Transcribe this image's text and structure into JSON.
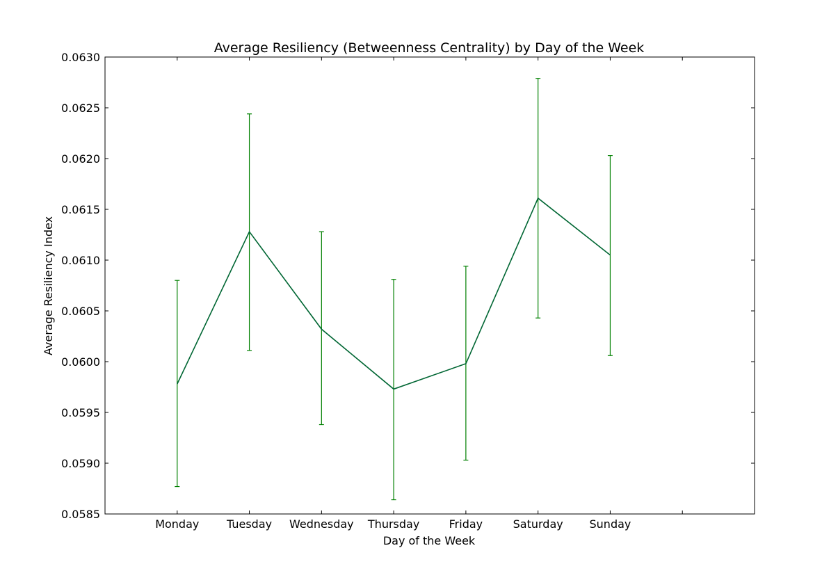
{
  "chart_data": {
    "type": "line",
    "title": "Average Resiliency (Betweenness Centrality) by Day of the Week",
    "xlabel": "Day of the Week",
    "ylabel": "Average Resiliency Index",
    "categories": [
      "Monday",
      "Tuesday",
      "Wednesday",
      "Thursday",
      "Friday",
      "Saturday",
      "Sunday"
    ],
    "xlim": [
      -1,
      8
    ],
    "ylim": [
      0.0585,
      0.063
    ],
    "y_ticks": [
      "0.0585",
      "0.0590",
      "0.0595",
      "0.0600",
      "0.0605",
      "0.0610",
      "0.0615",
      "0.0620",
      "0.0625",
      "0.0630"
    ],
    "grid": false,
    "series": [
      {
        "values": [
          0.05978,
          0.06128,
          0.06032,
          0.05973,
          0.05998,
          0.06161,
          0.06105
        ],
        "error_lower": [
          0.05877,
          0.06011,
          0.05938,
          0.05864,
          0.05903,
          0.06043,
          0.06006
        ],
        "error_upper": [
          0.0608,
          0.06244,
          0.06128,
          0.06081,
          0.06094,
          0.06279,
          0.06203
        ],
        "line_color": "#006633",
        "errorbar_color": "#008000"
      }
    ]
  }
}
